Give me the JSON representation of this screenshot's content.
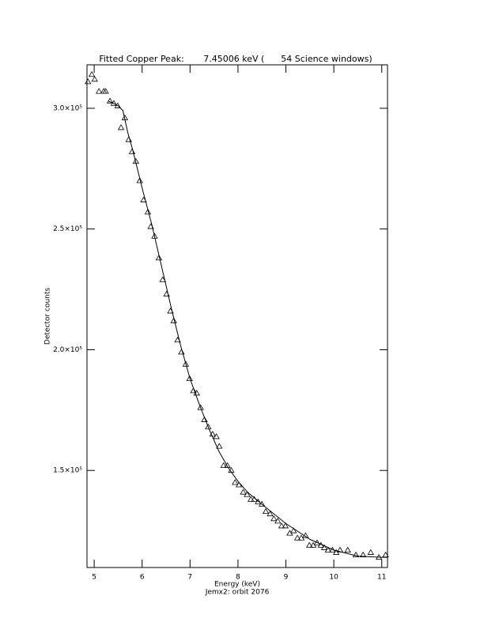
{
  "chart_data": {
    "type": "scatter",
    "title": "Fitted Copper Peak:       7.45006 keV (      54 Science windows)",
    "x_label": "Energy (keV)",
    "subtitle": "Jemx2: orbit 2076",
    "y_label": "Detector counts",
    "xlim": [
      4.85,
      11.12
    ],
    "ylim": [
      109800,
      318000
    ],
    "xticks": [
      5,
      6,
      7,
      8,
      9,
      10,
      11
    ],
    "yticks": [
      {
        "value": 150000,
        "label": "1.5×10⁵"
      },
      {
        "value": 200000,
        "label": "2.0×10⁵"
      },
      {
        "value": 250000,
        "label": "2.5×10⁵"
      },
      {
        "value": 300000,
        "label": "3.0×10⁵"
      }
    ],
    "color": "#000000",
    "series": [
      {
        "marker": "triangle",
        "x": [
          4.87,
          4.95,
          5.01,
          5.1,
          5.2,
          5.24,
          5.33,
          5.41,
          5.49,
          5.56,
          5.64,
          5.72,
          5.79,
          5.87,
          5.95,
          6.03,
          6.12,
          6.18,
          6.26,
          6.35,
          6.43,
          6.51,
          6.59,
          6.66,
          6.74,
          6.82,
          6.91,
          6.99,
          7.07,
          7.14,
          7.22,
          7.3,
          7.38,
          7.47,
          7.55,
          7.61,
          7.7,
          7.78,
          7.86,
          7.94,
          8.02,
          8.11,
          8.19,
          8.27,
          8.34,
          8.42,
          8.5,
          8.58,
          8.67,
          8.75,
          8.83,
          8.91,
          8.99,
          9.08,
          9.16,
          9.24,
          9.32,
          9.41,
          9.49,
          9.57,
          9.65,
          9.73,
          9.8,
          9.88,
          9.97,
          10.05,
          10.13,
          10.29,
          10.46,
          10.61,
          10.77,
          10.94,
          11.08
        ],
        "values": [
          311000,
          314000,
          312000,
          307000,
          307000,
          307000,
          303000,
          302000,
          301000,
          292000,
          296000,
          287000,
          282000,
          278000,
          270000,
          262000,
          257000,
          251000,
          247000,
          238000,
          229000,
          223000,
          216000,
          212000,
          204000,
          199000,
          194000,
          188000,
          183000,
          182000,
          176000,
          171000,
          168000,
          165000,
          164000,
          160000,
          152000,
          152000,
          150000,
          145000,
          144000,
          141000,
          140000,
          138000,
          138000,
          137000,
          136000,
          133000,
          132000,
          130000,
          129000,
          127000,
          127000,
          124000,
          125000,
          122000,
          122000,
          123000,
          119000,
          119000,
          120000,
          119000,
          118000,
          117000,
          117000,
          116000,
          117000,
          117000,
          115000,
          115000,
          116000,
          114000,
          115000
        ]
      },
      {
        "marker": "line",
        "x": [
          5.3,
          5.5,
          5.6,
          5.7,
          5.8,
          6.0,
          6.2,
          6.4,
          6.6,
          6.8,
          7.0,
          7.2,
          7.4,
          7.6,
          7.8,
          8.0,
          8.2,
          8.5,
          9.0,
          9.5,
          10.0,
          10.5,
          11.0,
          11.12
        ],
        "values": [
          303000,
          301000,
          299000,
          290000,
          283000,
          267000,
          252000,
          235000,
          218000,
          202000,
          188000,
          177000,
          167000,
          158000,
          151000,
          145500,
          141000,
          136000,
          128000,
          121500,
          117000,
          114500,
          114000,
          114000
        ]
      }
    ]
  }
}
